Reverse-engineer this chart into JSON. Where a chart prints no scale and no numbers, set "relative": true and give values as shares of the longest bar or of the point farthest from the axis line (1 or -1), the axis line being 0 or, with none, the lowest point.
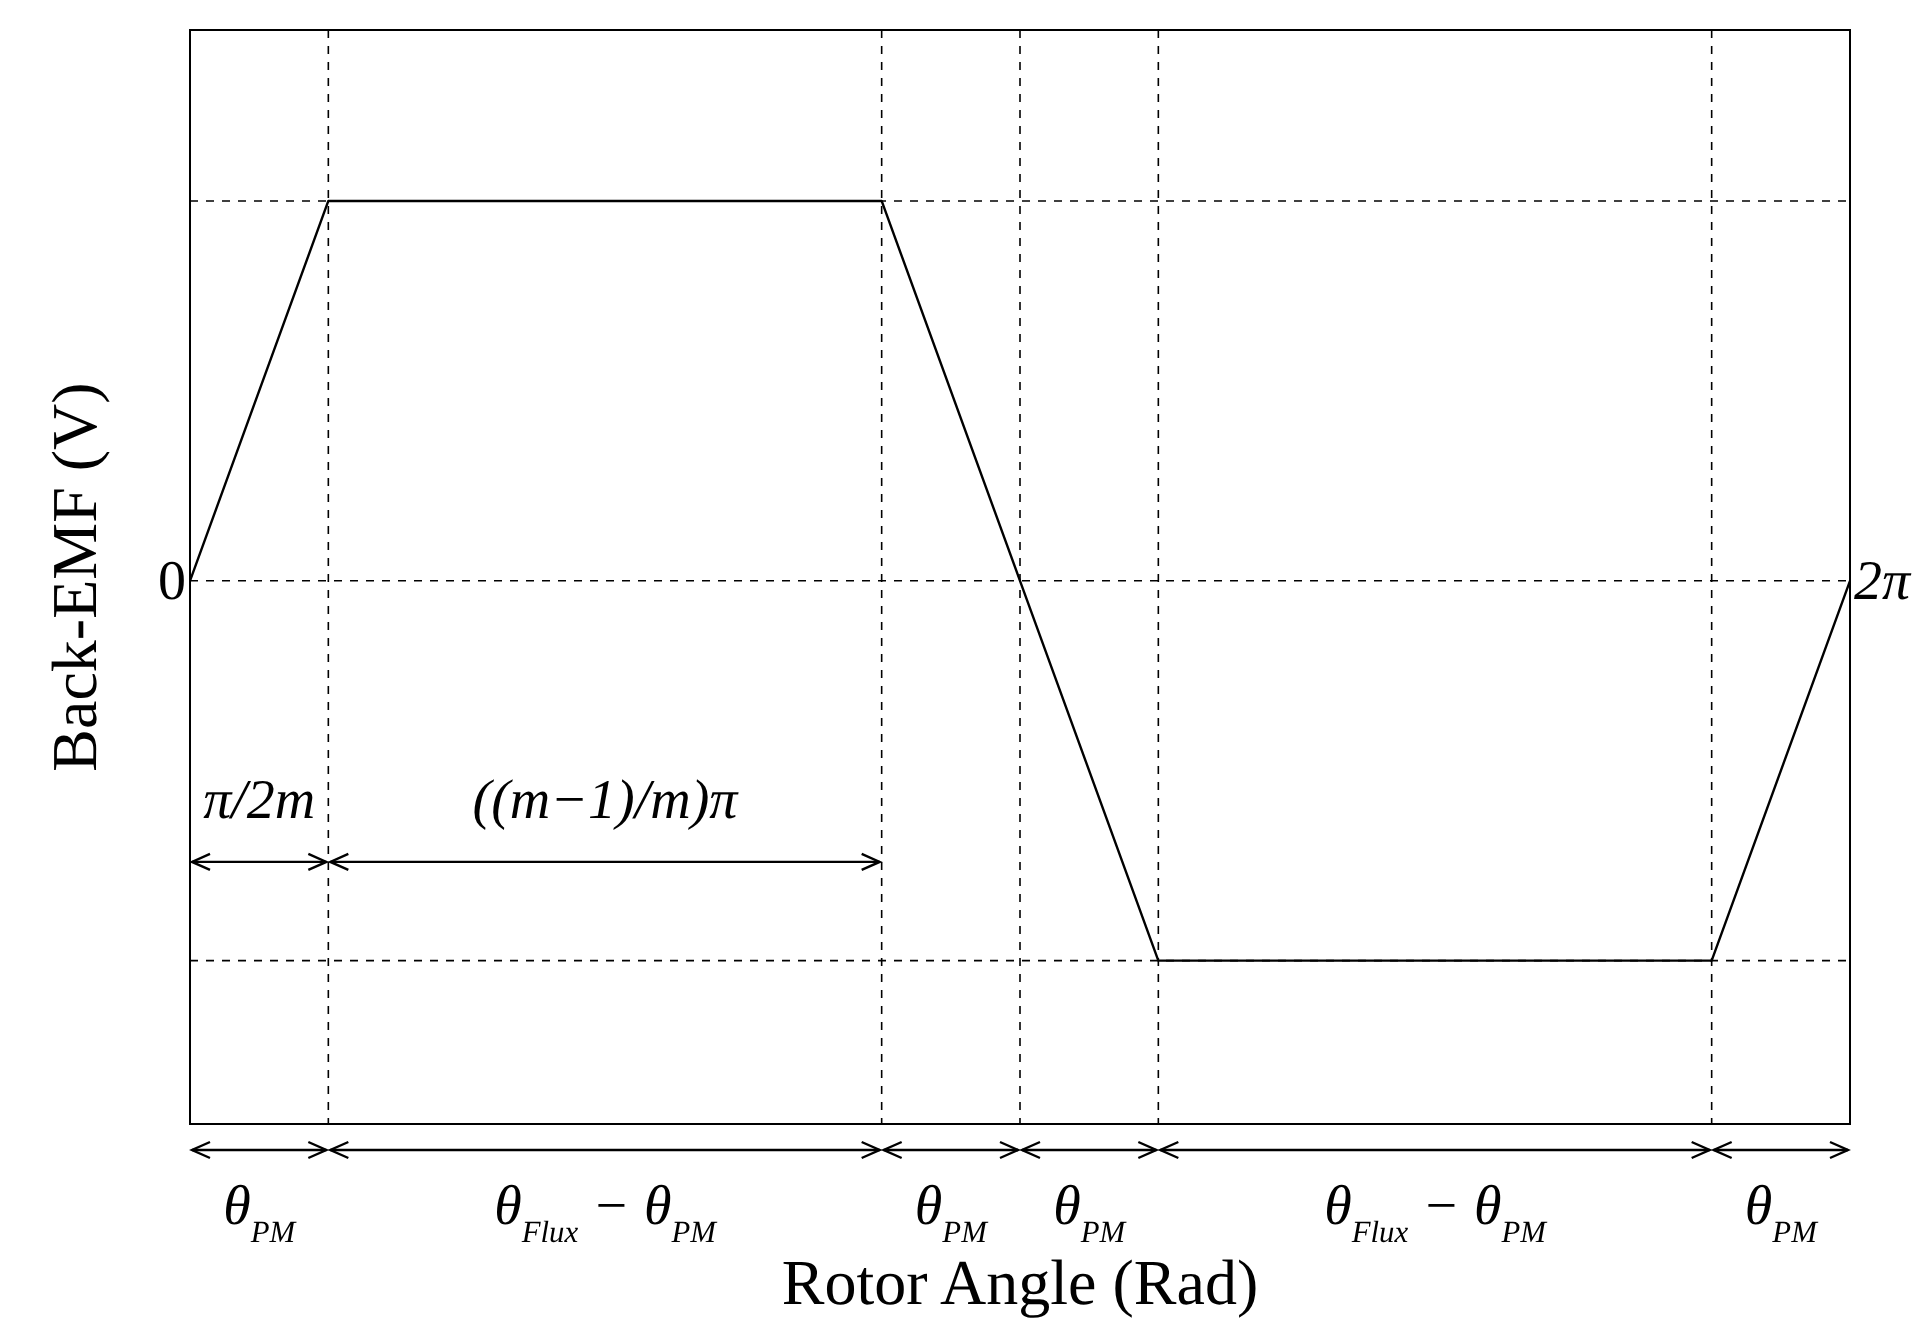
{
  "chart_data": {
    "type": "line",
    "relative": true,
    "grid": true,
    "xlabel": "Rotor Angle (Rad)",
    "ylabel": "Back-EMF (V)",
    "categories": [
      null,
      null,
      null,
      null,
      null,
      null,
      null,
      null,
      null,
      null,
      null,
      null,
      null
    ],
    "series": [
      {
        "color": "#000000",
        "values": [
          0,
          1,
          1,
          1,
          1,
          1,
          0,
          -1,
          -1,
          -1,
          -1,
          -1,
          0
        ]
      }
    ],
    "annotations": [
      "0",
      "2π",
      "π/2m",
      "((m−1)/m)π",
      "θ$_{PM}$",
      "θ$_{Flux}$ − θ$_{PM}$",
      "θ$_{PM}$",
      "θ$_{PM}$",
      "θ$_{Flux}$ − θ$_{PM}$",
      "θ$_{PM}$"
    ]
  }
}
